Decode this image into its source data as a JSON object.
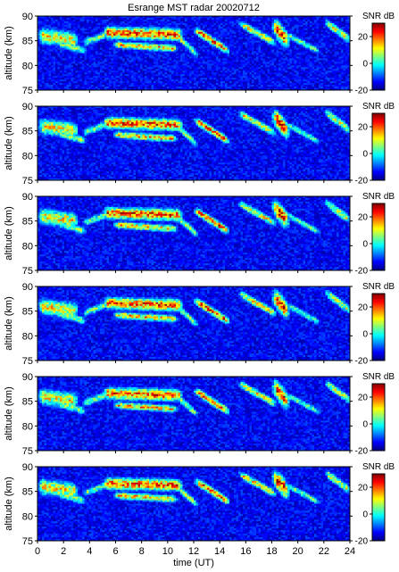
{
  "chart_data": {
    "type": "heatmap",
    "title": "Esrange MST radar 20020712",
    "xlabel": "time (UT)",
    "xlim": [
      0,
      24
    ],
    "x_ticks": [
      0,
      2,
      4,
      6,
      8,
      10,
      12,
      14,
      16,
      18,
      20,
      22,
      24
    ],
    "colorscale": "jet",
    "colorbar_ticks": [
      -20,
      0,
      20
    ],
    "colorbar_range": [
      -20,
      30
    ],
    "panels": [
      {
        "ylabel": "altitude (km)",
        "ylim": [
          75,
          90
        ],
        "y_ticks": [
          75,
          80,
          85,
          90
        ],
        "colorbar_label": "SNR dB"
      },
      {
        "ylabel": "altitude (km)",
        "ylim": [
          75,
          90
        ],
        "y_ticks": [
          75,
          80,
          85,
          90
        ],
        "colorbar_label": "SNR dB"
      },
      {
        "ylabel": "altitude (km)",
        "ylim": [
          75,
          90
        ],
        "y_ticks": [
          75,
          80,
          85,
          90
        ],
        "colorbar_label": "SNR dB"
      },
      {
        "ylabel": "altitude (km)",
        "ylim": [
          75,
          90
        ],
        "y_ticks": [
          75,
          80,
          85,
          90
        ],
        "colorbar_label": "SNR dB"
      },
      {
        "ylabel": "altitude (km)",
        "ylim": [
          75,
          90
        ],
        "y_ticks": [
          75,
          80,
          85,
          90
        ],
        "colorbar_label": "SNR dB"
      },
      {
        "ylabel": "altitude (km)",
        "ylim": [
          75,
          90
        ],
        "y_ticks": [
          75,
          80,
          85,
          90
        ],
        "colorbar_label": "SNR dB"
      }
    ],
    "echo_layers": [
      {
        "t": [
          0.2,
          3.0
        ],
        "center_km": [
          86.0,
          85.0
        ],
        "thickness_km": 3.2,
        "peak_db": 15
      },
      {
        "t": [
          1.5,
          3.6
        ],
        "center_km": [
          84.6,
          83.0
        ],
        "thickness_km": 1.6,
        "peak_db": 8
      },
      {
        "t": [
          3.6,
          5.6
        ],
        "center_km": [
          84.6,
          86.6
        ],
        "thickness_km": 1.6,
        "peak_db": 7
      },
      {
        "t": [
          5.2,
          11.0
        ],
        "center_km": [
          86.6,
          86.2
        ],
        "thickness_km": 2.4,
        "peak_db": 24
      },
      {
        "t": [
          6.0,
          10.6
        ],
        "center_km": [
          84.2,
          83.4
        ],
        "thickness_km": 1.4,
        "peak_db": 18
      },
      {
        "t": [
          10.6,
          12.2
        ],
        "center_km": [
          86.2,
          82.4
        ],
        "thickness_km": 1.6,
        "peak_db": 10
      },
      {
        "t": [
          12.2,
          14.6
        ],
        "center_km": [
          87.0,
          83.0
        ],
        "thickness_km": 1.6,
        "peak_db": 24
      },
      {
        "t": [
          15.6,
          18.2
        ],
        "center_km": [
          88.4,
          84.6
        ],
        "thickness_km": 1.6,
        "peak_db": 15
      },
      {
        "t": [
          18.2,
          19.2
        ],
        "center_km": [
          87.8,
          85.0
        ],
        "thickness_km": 3.6,
        "peak_db": 28
      },
      {
        "t": [
          19.2,
          21.6
        ],
        "center_km": [
          86.2,
          82.8
        ],
        "thickness_km": 1.4,
        "peak_db": 6
      },
      {
        "t": [
          22.2,
          24.0
        ],
        "center_km": [
          88.6,
          85.2
        ],
        "thickness_km": 1.8,
        "peak_db": 12
      }
    ]
  }
}
